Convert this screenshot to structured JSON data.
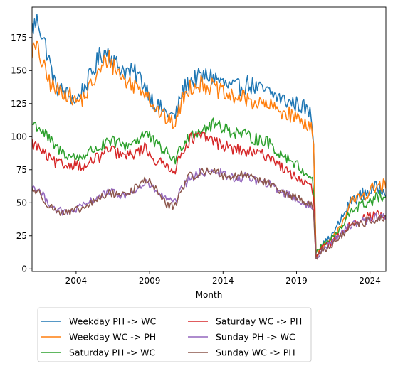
{
  "chart_data": {
    "type": "line",
    "title": "",
    "xlabel": "Month",
    "ylabel": "",
    "x_start": "2001-01",
    "x_end": "2025-02",
    "xlim": [
      "2001-01",
      "2025-02"
    ],
    "ylim": [
      -2,
      198
    ],
    "x_ticks": [
      2004,
      2009,
      2014,
      2019,
      2024
    ],
    "y_ticks": [
      0,
      25,
      50,
      75,
      100,
      125,
      150,
      175
    ],
    "grid": false,
    "legend_placement": "below the plot, two columns",
    "series": [
      {
        "name": "Weekday PH -> WC",
        "color": "#1f77b4",
        "knots": [
          [
            "2001-01",
            182
          ],
          [
            "2001-06",
            188
          ],
          [
            "2002-01",
            165
          ],
          [
            "2002-08",
            138
          ],
          [
            "2003-06",
            132
          ],
          [
            "2004-01",
            127
          ],
          [
            "2004-08",
            138
          ],
          [
            "2005-02",
            148
          ],
          [
            "2005-09",
            162
          ],
          [
            "2006-03",
            165
          ],
          [
            "2006-09",
            155
          ],
          [
            "2007-05",
            150
          ],
          [
            "2008-03",
            147
          ],
          [
            "2008-10",
            138
          ],
          [
            "2009-05",
            125
          ],
          [
            "2010-03",
            118
          ],
          [
            "2010-10",
            115
          ],
          [
            "2011-04",
            135
          ],
          [
            "2011-10",
            142
          ],
          [
            "2012-06",
            145
          ],
          [
            "2013-03",
            146
          ],
          [
            "2013-09",
            143
          ],
          [
            "2014-05",
            138
          ],
          [
            "2015-01",
            137
          ],
          [
            "2015-09",
            140
          ],
          [
            "2016-06",
            136
          ],
          [
            "2017-03",
            133
          ],
          [
            "2017-10",
            130
          ],
          [
            "2018-04",
            127
          ],
          [
            "2018-12",
            125
          ],
          [
            "2019-06",
            123
          ],
          [
            "2020-01",
            117
          ],
          [
            "2020-03",
            95
          ],
          [
            "2020-05",
            10
          ],
          [
            "2020-10",
            18
          ],
          [
            "2021-06",
            25
          ],
          [
            "2022-03",
            40
          ],
          [
            "2022-10",
            52
          ],
          [
            "2023-06",
            56
          ],
          [
            "2024-03",
            60
          ],
          [
            "2024-10",
            62
          ],
          [
            "2025-02",
            60
          ]
        ]
      },
      {
        "name": "Weekday WC -> PH",
        "color": "#ff7f0e",
        "knots": [
          [
            "2001-01",
            166
          ],
          [
            "2001-06",
            165
          ],
          [
            "2002-01",
            145
          ],
          [
            "2002-08",
            135
          ],
          [
            "2003-06",
            133
          ],
          [
            "2004-01",
            126
          ],
          [
            "2004-08",
            130
          ],
          [
            "2005-02",
            140
          ],
          [
            "2005-09",
            150
          ],
          [
            "2006-03",
            160
          ],
          [
            "2006-09",
            152
          ],
          [
            "2007-05",
            142
          ],
          [
            "2008-03",
            138
          ],
          [
            "2008-10",
            135
          ],
          [
            "2009-05",
            122
          ],
          [
            "2010-03",
            113
          ],
          [
            "2010-10",
            110
          ],
          [
            "2011-04",
            128
          ],
          [
            "2011-10",
            138
          ],
          [
            "2012-06",
            140
          ],
          [
            "2013-03",
            138
          ],
          [
            "2013-09",
            135
          ],
          [
            "2014-05",
            130
          ],
          [
            "2015-01",
            130
          ],
          [
            "2015-09",
            128
          ],
          [
            "2016-06",
            125
          ],
          [
            "2017-03",
            123
          ],
          [
            "2017-10",
            120
          ],
          [
            "2018-04",
            118
          ],
          [
            "2018-12",
            115
          ],
          [
            "2019-06",
            112
          ],
          [
            "2020-01",
            108
          ],
          [
            "2020-03",
            90
          ],
          [
            "2020-05",
            9
          ],
          [
            "2020-10",
            16
          ],
          [
            "2021-06",
            22
          ],
          [
            "2022-03",
            37
          ],
          [
            "2022-10",
            50
          ],
          [
            "2023-06",
            55
          ],
          [
            "2024-03",
            60
          ],
          [
            "2024-10",
            63
          ],
          [
            "2025-02",
            62
          ]
        ]
      },
      {
        "name": "Saturday PH -> WC",
        "color": "#2ca02c",
        "knots": [
          [
            "2001-01",
            110
          ],
          [
            "2001-06",
            108
          ],
          [
            "2002-01",
            100
          ],
          [
            "2002-08",
            92
          ],
          [
            "2003-06",
            86
          ],
          [
            "2004-01",
            84
          ],
          [
            "2004-08",
            86
          ],
          [
            "2005-02",
            90
          ],
          [
            "2005-09",
            92
          ],
          [
            "2006-03",
            95
          ],
          [
            "2006-09",
            96
          ],
          [
            "2007-05",
            93
          ],
          [
            "2008-03",
            98
          ],
          [
            "2008-10",
            103
          ],
          [
            "2009-05",
            95
          ],
          [
            "2010-03",
            88
          ],
          [
            "2010-10",
            82
          ],
          [
            "2011-04",
            95
          ],
          [
            "2011-10",
            102
          ],
          [
            "2012-06",
            105
          ],
          [
            "2013-03",
            108
          ],
          [
            "2013-09",
            110
          ],
          [
            "2014-05",
            105
          ],
          [
            "2015-01",
            103
          ],
          [
            "2015-09",
            100
          ],
          [
            "2016-06",
            98
          ],
          [
            "2017-03",
            95
          ],
          [
            "2017-10",
            88
          ],
          [
            "2018-04",
            85
          ],
          [
            "2018-12",
            80
          ],
          [
            "2019-06",
            74
          ],
          [
            "2020-01",
            70
          ],
          [
            "2020-03",
            62
          ],
          [
            "2020-05",
            12
          ],
          [
            "2020-10",
            18
          ],
          [
            "2021-06",
            23
          ],
          [
            "2022-03",
            32
          ],
          [
            "2022-10",
            45
          ],
          [
            "2023-06",
            48
          ],
          [
            "2024-03",
            52
          ],
          [
            "2024-10",
            55
          ],
          [
            "2025-02",
            52
          ]
        ]
      },
      {
        "name": "Saturday WC -> PH",
        "color": "#d62728",
        "knots": [
          [
            "2001-01",
            95
          ],
          [
            "2001-06",
            92
          ],
          [
            "2002-01",
            85
          ],
          [
            "2002-08",
            80
          ],
          [
            "2003-06",
            78
          ],
          [
            "2004-01",
            80
          ],
          [
            "2004-08",
            76
          ],
          [
            "2005-02",
            82
          ],
          [
            "2005-09",
            85
          ],
          [
            "2006-03",
            90
          ],
          [
            "2006-09",
            88
          ],
          [
            "2007-05",
            85
          ],
          [
            "2008-03",
            88
          ],
          [
            "2008-10",
            92
          ],
          [
            "2009-05",
            82
          ],
          [
            "2010-03",
            78
          ],
          [
            "2010-10",
            75
          ],
          [
            "2011-04",
            90
          ],
          [
            "2011-10",
            98
          ],
          [
            "2012-06",
            100
          ],
          [
            "2013-03",
            98
          ],
          [
            "2013-09",
            95
          ],
          [
            "2014-05",
            92
          ],
          [
            "2015-01",
            90
          ],
          [
            "2015-09",
            88
          ],
          [
            "2016-06",
            87
          ],
          [
            "2017-03",
            85
          ],
          [
            "2017-10",
            80
          ],
          [
            "2018-04",
            74
          ],
          [
            "2018-12",
            70
          ],
          [
            "2019-06",
            66
          ],
          [
            "2020-01",
            62
          ],
          [
            "2020-03",
            55
          ],
          [
            "2020-05",
            9
          ],
          [
            "2020-10",
            16
          ],
          [
            "2021-06",
            20
          ],
          [
            "2022-03",
            28
          ],
          [
            "2022-10",
            35
          ],
          [
            "2023-06",
            38
          ],
          [
            "2024-03",
            40
          ],
          [
            "2024-10",
            42
          ],
          [
            "2025-02",
            40
          ]
        ]
      },
      {
        "name": "Sunday PH -> WC",
        "color": "#9467bd",
        "knots": [
          [
            "2001-01",
            62
          ],
          [
            "2001-06",
            60
          ],
          [
            "2002-01",
            52
          ],
          [
            "2002-08",
            45
          ],
          [
            "2003-06",
            42
          ],
          [
            "2004-01",
            45
          ],
          [
            "2004-08",
            48
          ],
          [
            "2005-02",
            52
          ],
          [
            "2005-09",
            55
          ],
          [
            "2006-03",
            58
          ],
          [
            "2006-09",
            57
          ],
          [
            "2007-05",
            55
          ],
          [
            "2008-03",
            60
          ],
          [
            "2008-10",
            65
          ],
          [
            "2009-05",
            60
          ],
          [
            "2010-03",
            52
          ],
          [
            "2010-10",
            50
          ],
          [
            "2011-04",
            62
          ],
          [
            "2011-10",
            68
          ],
          [
            "2012-06",
            72
          ],
          [
            "2013-03",
            75
          ],
          [
            "2013-09",
            73
          ],
          [
            "2014-05",
            70
          ],
          [
            "2015-01",
            68
          ],
          [
            "2015-09",
            70
          ],
          [
            "2016-06",
            66
          ],
          [
            "2017-03",
            64
          ],
          [
            "2017-10",
            60
          ],
          [
            "2018-04",
            57
          ],
          [
            "2018-12",
            53
          ],
          [
            "2019-06",
            50
          ],
          [
            "2020-01",
            47
          ],
          [
            "2020-03",
            42
          ],
          [
            "2020-05",
            8
          ],
          [
            "2020-10",
            15
          ],
          [
            "2021-06",
            20
          ],
          [
            "2022-03",
            28
          ],
          [
            "2022-10",
            34
          ],
          [
            "2023-06",
            36
          ],
          [
            "2024-03",
            38
          ],
          [
            "2024-10",
            40
          ],
          [
            "2025-02",
            40
          ]
        ]
      },
      {
        "name": "Sunday WC -> PH",
        "color": "#8c564b",
        "knots": [
          [
            "2001-01",
            60
          ],
          [
            "2001-06",
            58
          ],
          [
            "2002-01",
            50
          ],
          [
            "2002-08",
            44
          ],
          [
            "2003-06",
            42
          ],
          [
            "2004-01",
            44
          ],
          [
            "2004-08",
            46
          ],
          [
            "2005-02",
            50
          ],
          [
            "2005-09",
            54
          ],
          [
            "2006-03",
            57
          ],
          [
            "2006-09",
            57
          ],
          [
            "2007-05",
            56
          ],
          [
            "2008-03",
            62
          ],
          [
            "2008-10",
            68
          ],
          [
            "2009-05",
            62
          ],
          [
            "2010-03",
            48
          ],
          [
            "2010-10",
            48
          ],
          [
            "2011-04",
            62
          ],
          [
            "2011-10",
            70
          ],
          [
            "2012-06",
            72
          ],
          [
            "2013-03",
            75
          ],
          [
            "2013-09",
            72
          ],
          [
            "2014-05",
            70
          ],
          [
            "2015-01",
            70
          ],
          [
            "2015-09",
            72
          ],
          [
            "2016-06",
            68
          ],
          [
            "2017-03",
            64
          ],
          [
            "2017-10",
            60
          ],
          [
            "2018-04",
            56
          ],
          [
            "2018-12",
            54
          ],
          [
            "2019-06",
            52
          ],
          [
            "2020-01",
            48
          ],
          [
            "2020-03",
            40
          ],
          [
            "2020-05",
            8
          ],
          [
            "2020-10",
            14
          ],
          [
            "2021-06",
            18
          ],
          [
            "2022-03",
            26
          ],
          [
            "2022-10",
            32
          ],
          [
            "2023-06",
            34
          ],
          [
            "2024-03",
            37
          ],
          [
            "2024-10",
            38
          ],
          [
            "2025-02",
            37
          ]
        ]
      }
    ]
  }
}
